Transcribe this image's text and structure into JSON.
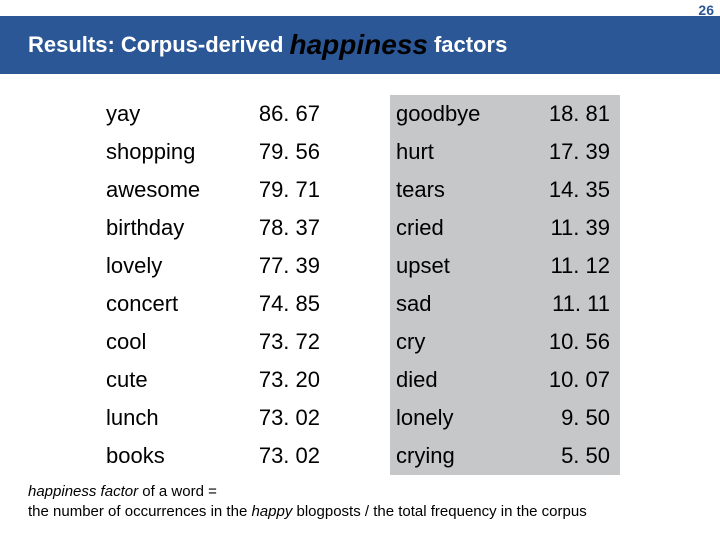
{
  "page_number": "26",
  "title": {
    "prefix": "Results: Corpus-derived",
    "highlight": "happiness",
    "suffix": "factors"
  },
  "colors": {
    "title_bg": "#2b5797",
    "title_text": "#ffffff",
    "highlight_text": "#000000",
    "gray_row": "#c5c7c9",
    "pageno": "#2b5797"
  },
  "left_table": {
    "rows": [
      {
        "word": "yay",
        "value": "86. 67"
      },
      {
        "word": "shopping",
        "value": "79. 56"
      },
      {
        "word": "awesome",
        "value": "79. 71"
      },
      {
        "word": "birthday",
        "value": "78. 37"
      },
      {
        "word": "lovely",
        "value": "77. 39"
      },
      {
        "word": "concert",
        "value": "74. 85"
      },
      {
        "word": "cool",
        "value": "73. 72"
      },
      {
        "word": "cute",
        "value": "73. 20"
      },
      {
        "word": "lunch",
        "value": "73. 02"
      },
      {
        "word": "books",
        "value": "73. 02"
      }
    ]
  },
  "right_table": {
    "rows": [
      {
        "word": "goodbye",
        "value": "18. 81"
      },
      {
        "word": "hurt",
        "value": "17. 39"
      },
      {
        "word": "tears",
        "value": "14. 35"
      },
      {
        "word": "cried",
        "value": "11. 39"
      },
      {
        "word": "upset",
        "value": "11. 12"
      },
      {
        "word": "sad",
        "value": "11. 11"
      },
      {
        "word": "cry",
        "value": "10. 56"
      },
      {
        "word": "died",
        "value": "10. 07"
      },
      {
        "word": "lonely",
        "value": "  9. 50"
      },
      {
        "word": "crying",
        "value": "  5. 50"
      }
    ]
  },
  "footer": {
    "line1_italic1": "happiness factor",
    "line1_plain": " of a word =",
    "line2_plain1": "the number of occurrences in the ",
    "line2_italic": "happy",
    "line2_plain2": " blogposts / the total frequency in the corpus"
  }
}
